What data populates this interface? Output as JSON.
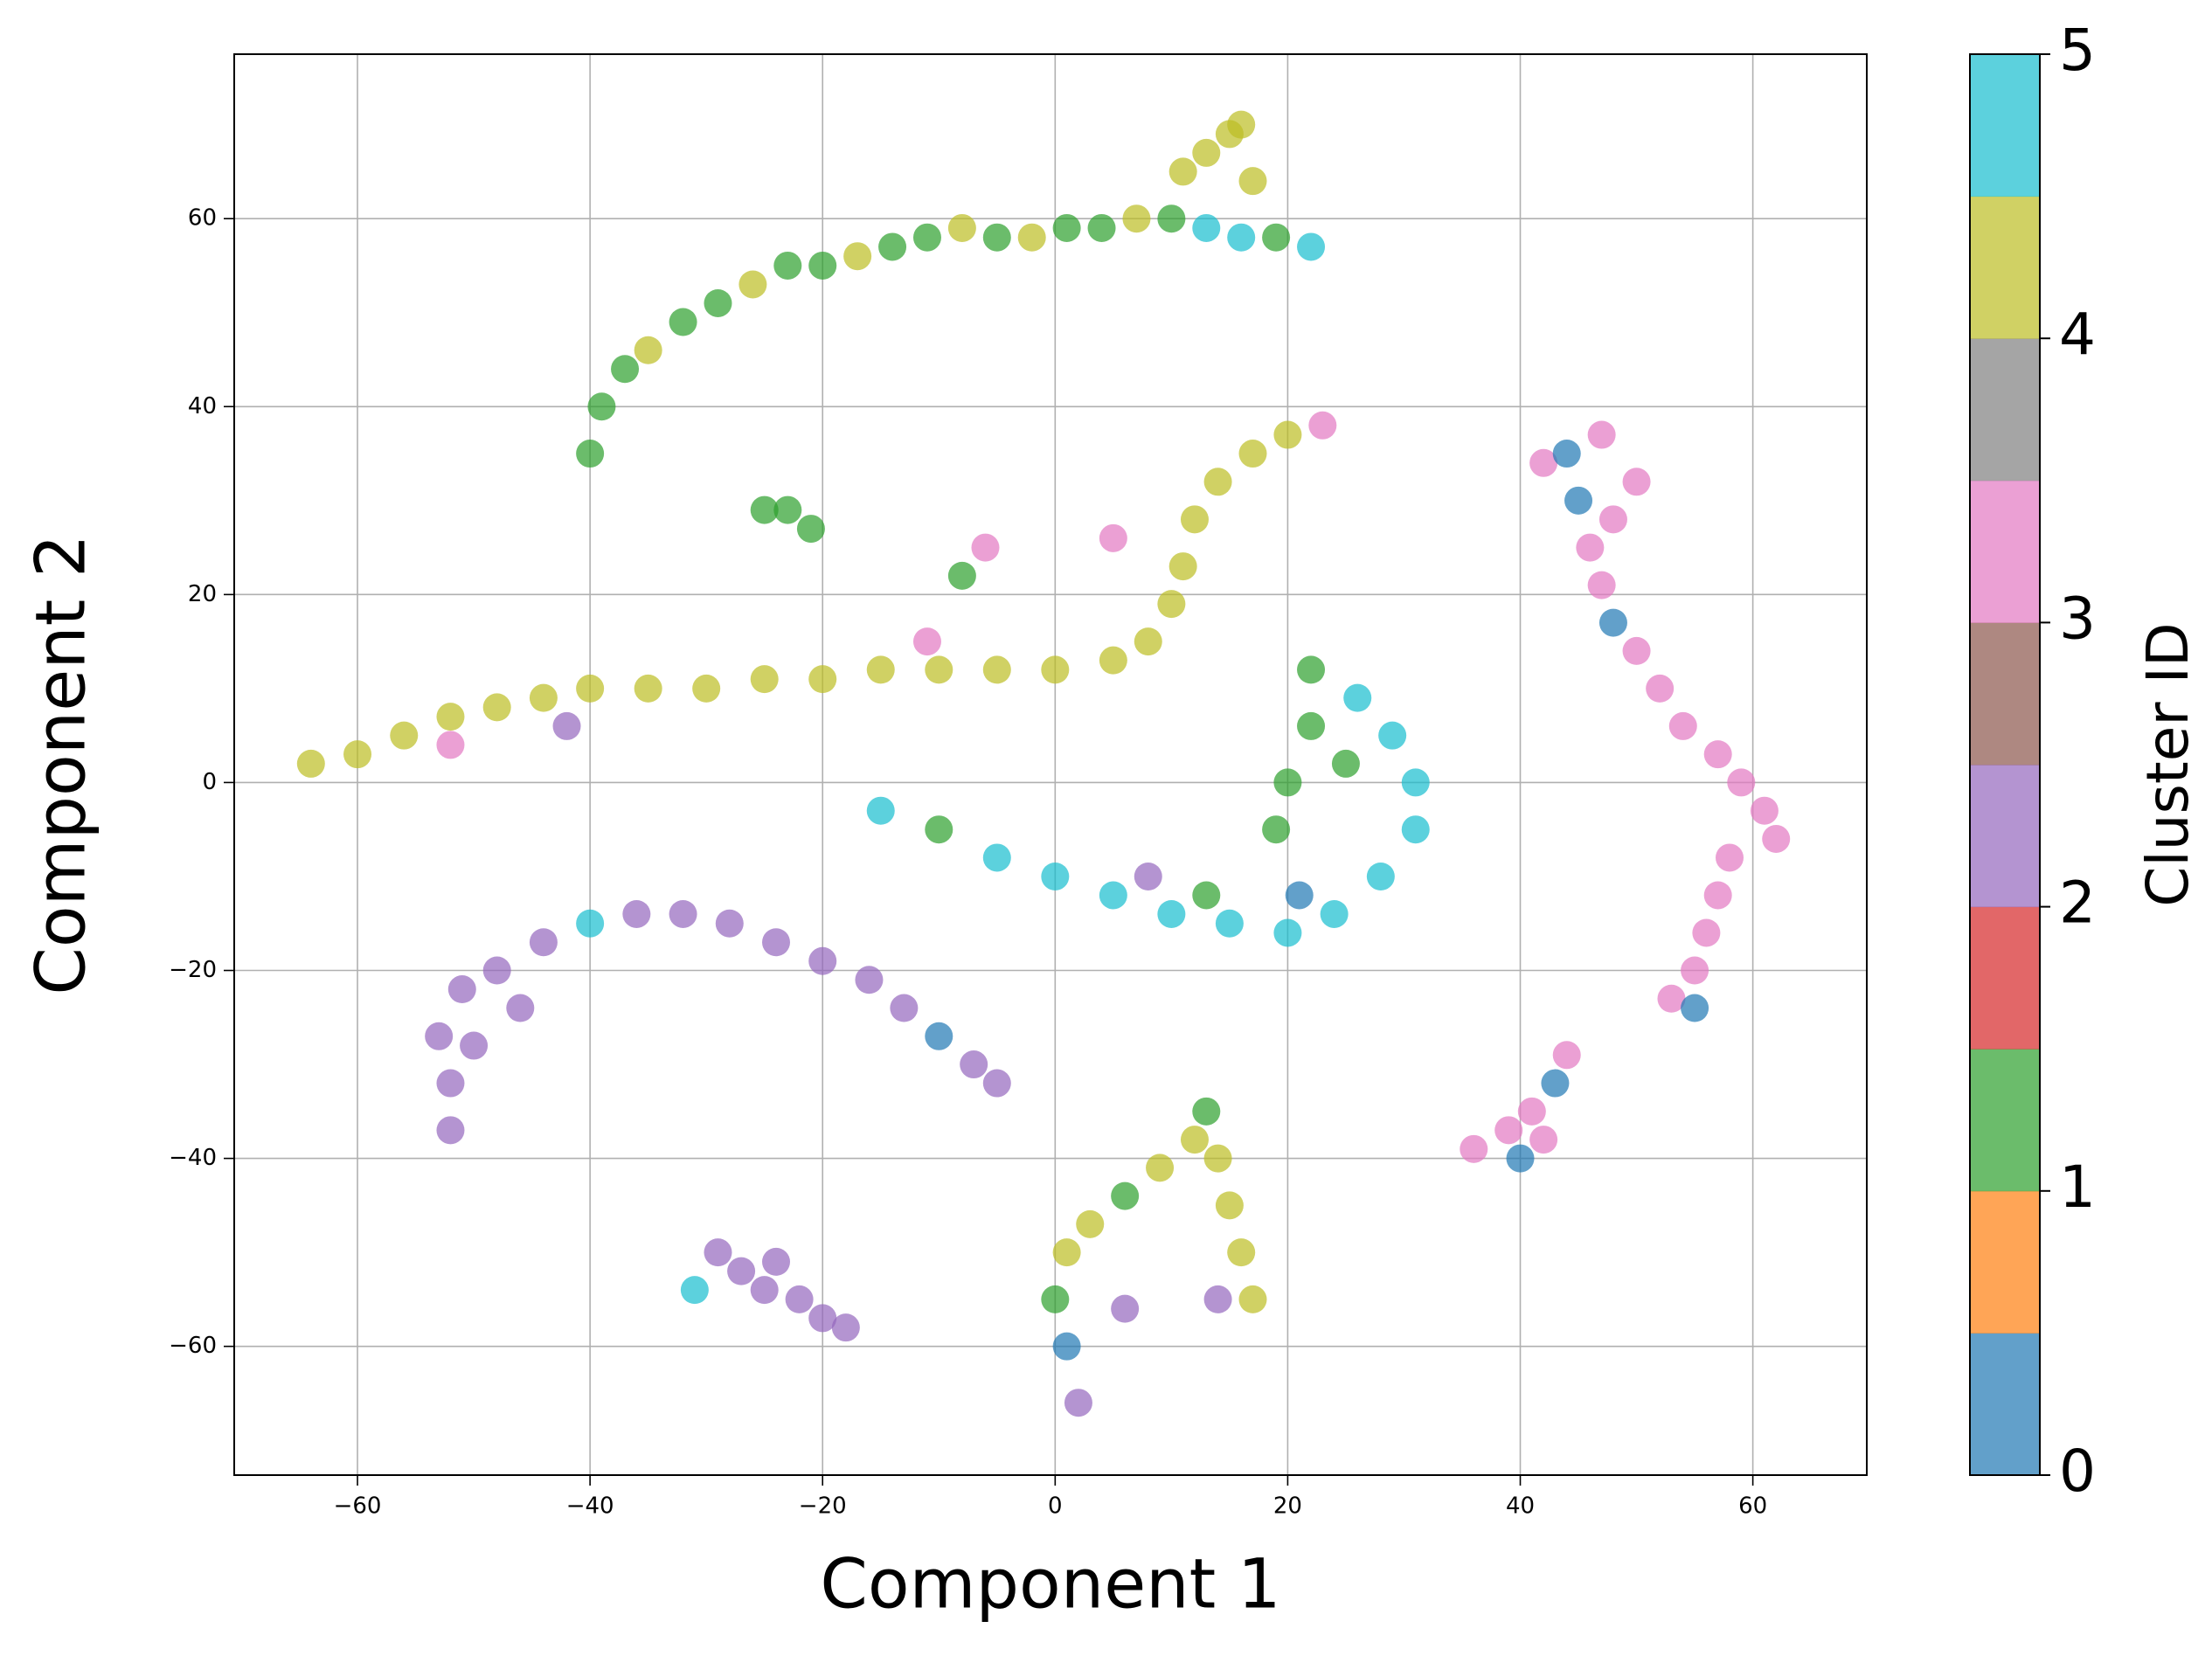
{
  "chart_data": {
    "type": "scatter",
    "xlabel": "Component 1",
    "ylabel": "Component 2",
    "xlim": [
      -70.6,
      69.8
    ],
    "ylim": [
      -73.7,
      77.5
    ],
    "xticks": [
      {
        "value": -60,
        "label": "−60"
      },
      {
        "value": -40,
        "label": "−40"
      },
      {
        "value": -20,
        "label": "−20"
      },
      0,
      20,
      40,
      60
    ],
    "yticks": [
      {
        "value": -60,
        "label": "−60"
      },
      {
        "value": -40,
        "label": "−40"
      },
      {
        "value": -20,
        "label": "−20"
      },
      0,
      20,
      40,
      60
    ],
    "grid": true,
    "colorbar": {
      "label": "Cluster ID",
      "lim": [
        0,
        5
      ],
      "ticks": [
        0,
        1,
        2,
        3,
        4,
        5
      ],
      "colors": [
        "#1f77b4",
        "#ff7f0e",
        "#2ca02c",
        "#d62728",
        "#9467bd",
        "#8c564b",
        "#e377c2",
        "#7f7f7f",
        "#bcbd22",
        "#17becf"
      ]
    },
    "series": [
      {
        "x": [
          -40,
          -39,
          -37,
          -35,
          -32,
          -29,
          -26,
          -23,
          -20,
          -17,
          -14,
          -11,
          -8,
          -5,
          -2,
          1,
          4,
          7,
          10,
          13,
          16,
          19,
          22,
          11,
          13,
          15,
          16,
          17,
          -25,
          -23,
          -21,
          -64,
          -60,
          -56,
          -52,
          -48,
          -44,
          -40,
          -35,
          -30,
          -25,
          -20,
          -15,
          -10,
          -5,
          0,
          5,
          8,
          10,
          11,
          12,
          14,
          17,
          20,
          23,
          -52,
          -42,
          -11,
          5,
          -6,
          -8,
          -15,
          -10,
          -5,
          0,
          5,
          10,
          15,
          20,
          24,
          28,
          31,
          31,
          29,
          26,
          22,
          8,
          13,
          21,
          19,
          20,
          22,
          25,
          42,
          44,
          47,
          45,
          46,
          47,
          48,
          50,
          52,
          54,
          57,
          59,
          61,
          62,
          58,
          57,
          56,
          55,
          53,
          55,
          50,
          48,
          36,
          39,
          41,
          43,
          44,
          40,
          42,
          -52,
          -52,
          -53,
          -51,
          -48,
          -44,
          -40,
          -36,
          -32,
          -28,
          -24,
          -20,
          -16,
          -13,
          -10,
          -7,
          -5,
          -50,
          -46,
          -29,
          -27,
          -25,
          -22,
          -20,
          -18,
          -31,
          -24,
          2,
          1,
          0,
          1,
          3,
          6,
          9,
          12,
          13,
          14,
          15,
          16,
          17,
          14,
          6
        ],
        "y": [
          35,
          40,
          44,
          46,
          49,
          51,
          53,
          55,
          55,
          56,
          57,
          58,
          59,
          58,
          58,
          59,
          59,
          60,
          60,
          59,
          58,
          58,
          57,
          65,
          67,
          69,
          70,
          64,
          29,
          29,
          27,
          2,
          3,
          5,
          7,
          8,
          9,
          10,
          10,
          10,
          11,
          11,
          12,
          12,
          12,
          12,
          13,
          15,
          19,
          23,
          28,
          32,
          35,
          37,
          38,
          4,
          6,
          15,
          26,
          25,
          22,
          -3,
          -5,
          -8,
          -10,
          -12,
          -14,
          -15,
          -16,
          -14,
          -10,
          -5,
          0,
          5,
          9,
          12,
          -10,
          -12,
          -12,
          -5,
          0,
          6,
          2,
          34,
          35,
          37,
          30,
          25,
          21,
          17,
          14,
          10,
          6,
          3,
          0,
          -3,
          -6,
          -8,
          -12,
          -16,
          -20,
          -23,
          -24,
          32,
          28,
          -39,
          -37,
          -35,
          -32,
          -29,
          -40,
          -38,
          -37,
          -32,
          -27,
          -22,
          -20,
          -17,
          -15,
          -14,
          -14,
          -15,
          -17,
          -19,
          -21,
          -24,
          -27,
          -30,
          -32,
          -28,
          -24,
          -50,
          -52,
          -54,
          -55,
          -57,
          -58,
          -54,
          -51,
          -66,
          -60,
          -55,
          -50,
          -47,
          -44,
          -41,
          -38,
          -35,
          -40,
          -45,
          -50,
          -55,
          -55,
          -56
        ],
        "c": [
          1,
          1,
          1,
          4,
          1,
          1,
          4,
          1,
          1,
          4,
          1,
          1,
          4,
          1,
          4,
          1,
          1,
          4,
          1,
          5,
          5,
          1,
          5,
          4,
          4,
          4,
          4,
          4,
          1,
          1,
          1,
          4,
          4,
          4,
          4,
          4,
          4,
          4,
          4,
          4,
          4,
          4,
          4,
          4,
          4,
          4,
          4,
          4,
          4,
          4,
          4,
          4,
          4,
          4,
          3,
          3,
          2,
          3,
          3,
          3,
          1,
          5,
          1,
          5,
          5,
          5,
          5,
          5,
          5,
          5,
          5,
          5,
          5,
          5,
          5,
          1,
          2,
          1,
          0,
          1,
          1,
          1,
          1,
          3,
          0,
          3,
          0,
          3,
          3,
          0,
          3,
          3,
          3,
          3,
          3,
          3,
          3,
          3,
          3,
          3,
          3,
          3,
          0,
          3,
          3,
          3,
          3,
          3,
          0,
          3,
          0,
          3,
          2,
          2,
          2,
          2,
          2,
          2,
          5,
          2,
          2,
          2,
          2,
          2,
          2,
          2,
          0,
          2,
          2,
          2,
          2,
          2,
          2,
          2,
          2,
          2,
          2,
          5,
          2,
          2,
          0,
          1,
          4,
          4,
          1,
          4,
          4,
          1,
          4,
          4,
          4,
          4,
          2,
          2
        ]
      }
    ]
  }
}
